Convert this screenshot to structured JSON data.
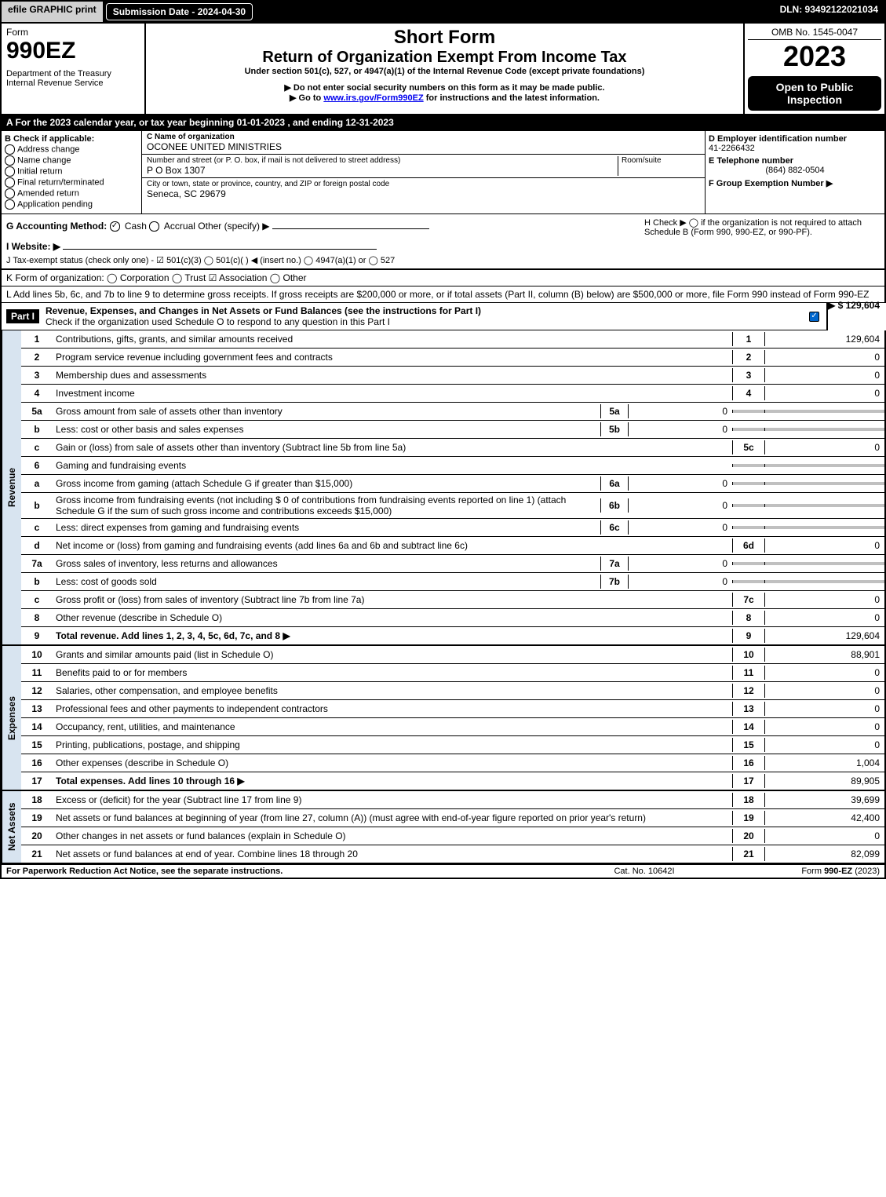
{
  "top": {
    "efile": "efile GRAPHIC print",
    "sub_date": "Submission Date - 2024-04-30",
    "dln": "DLN: 93492122021034"
  },
  "header": {
    "form_word": "Form",
    "form_no": "990EZ",
    "dept": "Department of the Treasury",
    "irs": "Internal Revenue Service",
    "short_form": "Short Form",
    "title": "Return of Organization Exempt From Income Tax",
    "subtitle": "Under section 501(c), 527, or 4947(a)(1) of the Internal Revenue Code (except private foundations)",
    "note1": "▶ Do not enter social security numbers on this form as it may be made public.",
    "note2": "▶ Go to www.irs.gov/Form990EZ for instructions and the latest information.",
    "omb": "OMB No. 1545-0047",
    "year": "2023",
    "open": "Open to Public Inspection"
  },
  "line_a": "A  For the 2023 calendar year, or tax year beginning 01-01-2023 , and ending 12-31-2023",
  "box_b": {
    "title": "B  Check if applicable:",
    "items": [
      "Address change",
      "Name change",
      "Initial return",
      "Final return/terminated",
      "Amended return",
      "Application pending"
    ]
  },
  "box_c": {
    "label_name": "C Name of organization",
    "name": "OCONEE UNITED MINISTRIES",
    "label_addr": "Number and street (or P. O. box, if mail is not delivered to street address)",
    "room_label": "Room/suite",
    "addr": "P O Box 1307",
    "label_city": "City or town, state or province, country, and ZIP or foreign postal code",
    "city": "Seneca, SC  29679"
  },
  "box_d": {
    "label": "D Employer identification number",
    "ein": "41-2266432",
    "tel_label": "E Telephone number",
    "tel": "(864) 882-0504",
    "group_label": "F Group Exemption Number   ▶"
  },
  "line_g": {
    "label": "G Accounting Method:",
    "cash": "Cash",
    "accrual": "Accrual",
    "other": "Other (specify) ▶"
  },
  "line_h": "H   Check ▶  ◯  if the organization is not required to attach Schedule B (Form 990, 990-EZ, or 990-PF).",
  "line_i": "I Website: ▶",
  "line_j": "J Tax-exempt status (check only one) - ☑ 501(c)(3) ◯ 501(c)(  ) ◀ (insert no.) ◯ 4947(a)(1) or ◯ 527",
  "line_k": "K Form of organization:  ◯ Corporation  ◯ Trust  ☑ Association  ◯ Other",
  "line_l": {
    "text": "L Add lines 5b, 6c, and 7b to line 9 to determine gross receipts. If gross receipts are $200,000 or more, or if total assets (Part II, column (B) below) are $500,000 or more, file Form 990 instead of Form 990-EZ",
    "value": "▶ $ 129,604"
  },
  "part1": {
    "label": "Part I",
    "title": "Revenue, Expenses, and Changes in Net Assets or Fund Balances (see the instructions for Part I)",
    "check_note": "Check if the organization used Schedule O to respond to any question in this Part I",
    "checked": true
  },
  "sections": {
    "revenue_label": "Revenue",
    "expenses_label": "Expenses",
    "net_label": "Net Assets"
  },
  "rows": [
    {
      "n": "1",
      "desc": "Contributions, gifts, grants, and similar amounts received",
      "num": "1",
      "val": "129,604"
    },
    {
      "n": "2",
      "desc": "Program service revenue including government fees and contracts",
      "num": "2",
      "val": "0"
    },
    {
      "n": "3",
      "desc": "Membership dues and assessments",
      "num": "3",
      "val": "0"
    },
    {
      "n": "4",
      "desc": "Investment income",
      "num": "4",
      "val": "0"
    },
    {
      "n": "5a",
      "desc": "Gross amount from sale of assets other than inventory",
      "sub": "5a",
      "subval": "0",
      "shaded": true
    },
    {
      "n": "b",
      "desc": "Less: cost or other basis and sales expenses",
      "sub": "5b",
      "subval": "0",
      "shaded": true
    },
    {
      "n": "c",
      "desc": "Gain or (loss) from sale of assets other than inventory (Subtract line 5b from line 5a)",
      "num": "5c",
      "val": "0"
    },
    {
      "n": "6",
      "desc": "Gaming and fundraising events",
      "shaded": true
    },
    {
      "n": "a",
      "desc": "Gross income from gaming (attach Schedule G if greater than $15,000)",
      "sub": "6a",
      "subval": "0",
      "shaded": true
    },
    {
      "n": "b",
      "desc": "Gross income from fundraising events (not including $ 0 of contributions from fundraising events reported on line 1) (attach Schedule G if the sum of such gross income and contributions exceeds $15,000)",
      "sub": "6b",
      "subval": "0",
      "shaded": true
    },
    {
      "n": "c",
      "desc": "Less: direct expenses from gaming and fundraising events",
      "sub": "6c",
      "subval": "0",
      "shaded": true
    },
    {
      "n": "d",
      "desc": "Net income or (loss) from gaming and fundraising events (add lines 6a and 6b and subtract line 6c)",
      "num": "6d",
      "val": "0"
    },
    {
      "n": "7a",
      "desc": "Gross sales of inventory, less returns and allowances",
      "sub": "7a",
      "subval": "0",
      "shaded": true
    },
    {
      "n": "b",
      "desc": "Less: cost of goods sold",
      "sub": "7b",
      "subval": "0",
      "shaded": true
    },
    {
      "n": "c",
      "desc": "Gross profit or (loss) from sales of inventory (Subtract line 7b from line 7a)",
      "num": "7c",
      "val": "0"
    },
    {
      "n": "8",
      "desc": "Other revenue (describe in Schedule O)",
      "num": "8",
      "val": "0"
    },
    {
      "n": "9",
      "desc": "Total revenue. Add lines 1, 2, 3, 4, 5c, 6d, 7c, and 8   ▶",
      "num": "9",
      "val": "129,604",
      "bold": true
    }
  ],
  "exp_rows": [
    {
      "n": "10",
      "desc": "Grants and similar amounts paid (list in Schedule O)",
      "num": "10",
      "val": "88,901"
    },
    {
      "n": "11",
      "desc": "Benefits paid to or for members",
      "num": "11",
      "val": "0"
    },
    {
      "n": "12",
      "desc": "Salaries, other compensation, and employee benefits",
      "num": "12",
      "val": "0"
    },
    {
      "n": "13",
      "desc": "Professional fees and other payments to independent contractors",
      "num": "13",
      "val": "0"
    },
    {
      "n": "14",
      "desc": "Occupancy, rent, utilities, and maintenance",
      "num": "14",
      "val": "0"
    },
    {
      "n": "15",
      "desc": "Printing, publications, postage, and shipping",
      "num": "15",
      "val": "0"
    },
    {
      "n": "16",
      "desc": "Other expenses (describe in Schedule O)",
      "num": "16",
      "val": "1,004"
    },
    {
      "n": "17",
      "desc": "Total expenses. Add lines 10 through 16   ▶",
      "num": "17",
      "val": "89,905",
      "bold": true
    }
  ],
  "net_rows": [
    {
      "n": "18",
      "desc": "Excess or (deficit) for the year (Subtract line 17 from line 9)",
      "num": "18",
      "val": "39,699"
    },
    {
      "n": "19",
      "desc": "Net assets or fund balances at beginning of year (from line 27, column (A)) (must agree with end-of-year figure reported on prior year's return)",
      "num": "19",
      "val": "42,400"
    },
    {
      "n": "20",
      "desc": "Other changes in net assets or fund balances (explain in Schedule O)",
      "num": "20",
      "val": "0"
    },
    {
      "n": "21",
      "desc": "Net assets or fund balances at end of year. Combine lines 18 through 20",
      "num": "21",
      "val": "82,099"
    }
  ],
  "footer": {
    "left": "For Paperwork Reduction Act Notice, see the separate instructions.",
    "center": "Cat. No. 10642I",
    "right": "Form 990-EZ (2023)"
  }
}
